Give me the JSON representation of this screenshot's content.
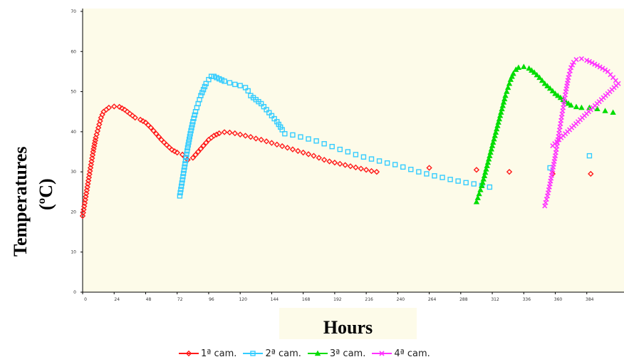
{
  "chart_data": {
    "type": "scatter",
    "xlabel": "Hours",
    "ylabel": "Temperatures",
    "ylabel_unit": "(ºC)",
    "xlim": [
      0,
      408
    ],
    "ylim": [
      0,
      70
    ],
    "x_ticks": [
      0,
      24,
      48,
      72,
      96,
      120,
      144,
      168,
      192,
      216,
      240,
      264,
      288,
      312,
      336,
      360,
      384
    ],
    "y_ticks": [
      0,
      10,
      20,
      30,
      40,
      50,
      60,
      70
    ],
    "grid": false,
    "legend_position": "bottom",
    "series": [
      {
        "name": "1ª cam.",
        "color": "#ff1a1a",
        "marker": "diamond",
        "points": [
          [
            0,
            19
          ],
          [
            2,
            23
          ],
          [
            4,
            27
          ],
          [
            6,
            31
          ],
          [
            8,
            35
          ],
          [
            10,
            38.5
          ],
          [
            12,
            41
          ],
          [
            14,
            43.5
          ],
          [
            16,
            45
          ],
          [
            18,
            45.5
          ],
          [
            20,
            46
          ],
          [
            24,
            46.3
          ],
          [
            28,
            46.2
          ],
          [
            32,
            45.5
          ],
          [
            36,
            44.5
          ],
          [
            40,
            43.5
          ],
          [
            44,
            43
          ],
          [
            48,
            42.3
          ],
          [
            52,
            41
          ],
          [
            56,
            39.5
          ],
          [
            60,
            38
          ],
          [
            64,
            36.7
          ],
          [
            68,
            35.5
          ],
          [
            72,
            34.8
          ],
          [
            76,
            34.3
          ],
          [
            80,
            33
          ],
          [
            84,
            33.5
          ],
          [
            88,
            35
          ],
          [
            92,
            36.5
          ],
          [
            96,
            38
          ],
          [
            100,
            39
          ],
          [
            104,
            39.6
          ],
          [
            108,
            39.9
          ],
          [
            112,
            39.8
          ],
          [
            116,
            39.6
          ],
          [
            120,
            39.3
          ],
          [
            124,
            39
          ],
          [
            128,
            38.7
          ],
          [
            132,
            38.3
          ],
          [
            136,
            38
          ],
          [
            140,
            37.6
          ],
          [
            144,
            37.2
          ],
          [
            148,
            36.8
          ],
          [
            152,
            36.4
          ],
          [
            156,
            36
          ],
          [
            160,
            35.6
          ],
          [
            164,
            35.2
          ],
          [
            168,
            34.8
          ],
          [
            172,
            34.4
          ],
          [
            176,
            34
          ],
          [
            180,
            33.5
          ],
          [
            184,
            33
          ],
          [
            188,
            32.6
          ],
          [
            192,
            32.3
          ],
          [
            196,
            32
          ],
          [
            200,
            31.7
          ],
          [
            204,
            31.4
          ],
          [
            208,
            31.1
          ],
          [
            212,
            30.8
          ],
          [
            216,
            30.5
          ],
          [
            220,
            30.2
          ],
          [
            224,
            30
          ],
          [
            264,
            31
          ],
          [
            300,
            30.5
          ],
          [
            325,
            30
          ],
          [
            358,
            29.5
          ],
          [
            387,
            29.5
          ]
        ]
      },
      {
        "name": "2ª cam.",
        "color": "#33ccff",
        "marker": "square",
        "points": [
          [
            74,
            24
          ],
          [
            76,
            28
          ],
          [
            78,
            32
          ],
          [
            80,
            36
          ],
          [
            82,
            39.5
          ],
          [
            84,
            42.5
          ],
          [
            86,
            45
          ],
          [
            88,
            47
          ],
          [
            90,
            49
          ],
          [
            92,
            50.5
          ],
          [
            94,
            52
          ],
          [
            96,
            53
          ],
          [
            98,
            53.8
          ],
          [
            100,
            53.8
          ],
          [
            104,
            53.2
          ],
          [
            108,
            52.6
          ],
          [
            112,
            52.2
          ],
          [
            116,
            51.8
          ],
          [
            120,
            51.5
          ],
          [
            124,
            51
          ],
          [
            126,
            50.2
          ],
          [
            128,
            49
          ],
          [
            132,
            48
          ],
          [
            136,
            47
          ],
          [
            140,
            45.5
          ],
          [
            144,
            44
          ],
          [
            148,
            42.5
          ],
          [
            152,
            40.5
          ],
          [
            154,
            39.5
          ],
          [
            160,
            39.2
          ],
          [
            166,
            38.7
          ],
          [
            172,
            38.2
          ],
          [
            178,
            37.7
          ],
          [
            184,
            37
          ],
          [
            190,
            36.3
          ],
          [
            196,
            35.6
          ],
          [
            202,
            35
          ],
          [
            208,
            34.3
          ],
          [
            214,
            33.7
          ],
          [
            220,
            33.2
          ],
          [
            226,
            32.7
          ],
          [
            232,
            32.2
          ],
          [
            238,
            31.8
          ],
          [
            244,
            31.2
          ],
          [
            250,
            30.6
          ],
          [
            256,
            30
          ],
          [
            262,
            29.5
          ],
          [
            268,
            29
          ],
          [
            274,
            28.6
          ],
          [
            280,
            28.1
          ],
          [
            286,
            27.7
          ],
          [
            292,
            27.3
          ],
          [
            298,
            27
          ],
          [
            304,
            26.6
          ],
          [
            310,
            26.2
          ],
          [
            356,
            31
          ],
          [
            386,
            34
          ]
        ]
      },
      {
        "name": "3ª cam.",
        "color": "#00dd00",
        "marker": "triangle",
        "points": [
          [
            300,
            22.5
          ],
          [
            302,
            24.5
          ],
          [
            304,
            26.5
          ],
          [
            306,
            29
          ],
          [
            308,
            31.5
          ],
          [
            310,
            34
          ],
          [
            312,
            36.5
          ],
          [
            314,
            39
          ],
          [
            316,
            41.5
          ],
          [
            318,
            44
          ],
          [
            320,
            46.5
          ],
          [
            322,
            49
          ],
          [
            324,
            51
          ],
          [
            326,
            53
          ],
          [
            328,
            54.5
          ],
          [
            330,
            55.5
          ],
          [
            332,
            56
          ],
          [
            336,
            56.2
          ],
          [
            340,
            55.8
          ],
          [
            344,
            54.8
          ],
          [
            348,
            53.5
          ],
          [
            352,
            52
          ],
          [
            356,
            50.8
          ],
          [
            360,
            49.5
          ],
          [
            364,
            48.5
          ],
          [
            368,
            47.5
          ],
          [
            372,
            46.6
          ],
          [
            376,
            46.2
          ],
          [
            380,
            46
          ],
          [
            386,
            46
          ],
          [
            392,
            45.7
          ],
          [
            398,
            45.2
          ],
          [
            404,
            44.8
          ]
        ]
      },
      {
        "name": "4ª cam.",
        "color": "#ff33ff",
        "marker": "cross",
        "points": [
          [
            352,
            21.5
          ],
          [
            354,
            24
          ],
          [
            356,
            27
          ],
          [
            358,
            30.5
          ],
          [
            360,
            34
          ],
          [
            362,
            38
          ],
          [
            364,
            42
          ],
          [
            366,
            46
          ],
          [
            368,
            50
          ],
          [
            370,
            53.5
          ],
          [
            372,
            56
          ],
          [
            374,
            57.3
          ],
          [
            376,
            58
          ],
          [
            380,
            58.2
          ],
          [
            384,
            57.8
          ],
          [
            388,
            57.2
          ],
          [
            392,
            56.5
          ],
          [
            396,
            55.8
          ],
          [
            400,
            55
          ],
          [
            404,
            53.5
          ],
          [
            408,
            52
          ],
          [
            358,
            36.5
          ]
        ]
      }
    ]
  }
}
